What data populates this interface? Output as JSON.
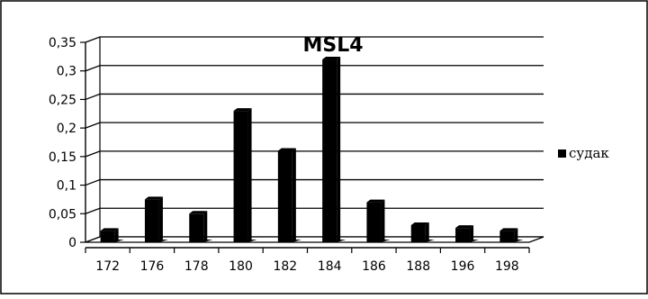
{
  "chart_data": {
    "type": "bar",
    "title": "MSL4",
    "xlabel": "",
    "ylabel": "",
    "categories": [
      "172",
      "176",
      "178",
      "180",
      "182",
      "184",
      "186",
      "188",
      "196",
      "198"
    ],
    "series": [
      {
        "name": "судак",
        "values": [
          0.02,
          0.075,
          0.05,
          0.23,
          0.16,
          0.32,
          0.07,
          0.03,
          0.025,
          0.02
        ],
        "color": "#000000"
      }
    ],
    "ylim": [
      0,
      0.35
    ],
    "yticks": [
      "0",
      "0,05",
      "0,1",
      "0,15",
      "0,2",
      "0,25",
      "0,3",
      "0,35"
    ],
    "grid": true,
    "legend_position": "right",
    "style": "3d-bar"
  }
}
